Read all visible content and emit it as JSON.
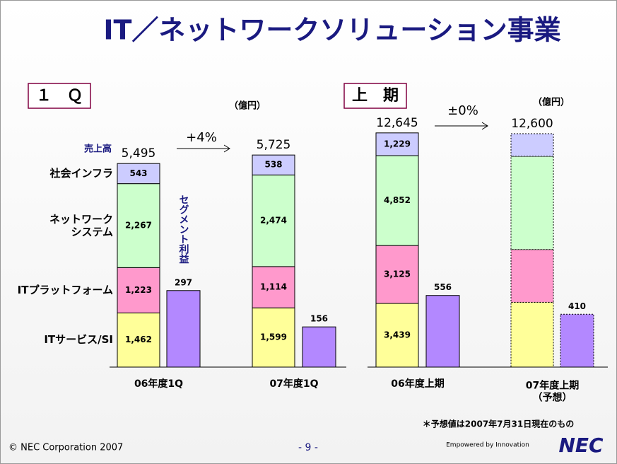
{
  "title": "IT／ネットワークソリューション事業",
  "chart_data": [
    {
      "type": "stacked_bar",
      "label": "１　Ｑ",
      "unit": "（億円）",
      "growth": "+4%",
      "categories": [
        "06年度1Q",
        "07年度1Q"
      ],
      "ylim": [
        0,
        8000
      ],
      "y2lim": [
        0,
        1150
      ],
      "dashed": [
        false,
        false
      ],
      "totals": {
        "name": "売上高",
        "values": [
          5495,
          5725
        ],
        "value_labels": [
          "5,495",
          "5,725"
        ]
      },
      "series": [
        {
          "name": "ITサービス/SI",
          "color": "#ffff99",
          "values": [
            1462,
            1599
          ],
          "value_labels": [
            "1,462",
            "1,599"
          ]
        },
        {
          "name": "ITプラットフォーム",
          "color": "#ff99cc",
          "values": [
            1223,
            1114
          ],
          "value_labels": [
            "1,223",
            "1,114"
          ]
        },
        {
          "name": "ネットワーク\nシステム",
          "color": "#ccffcc",
          "values": [
            2267,
            2474
          ],
          "value_labels": [
            "2,267",
            "2,474"
          ]
        },
        {
          "name": "社会インフラ",
          "color": "#ccccff",
          "values": [
            543,
            538
          ]
        },
        {
          "name": "セグメント利益",
          "color": "#b388ff",
          "axis": "y2",
          "values": [
            297,
            156
          ]
        }
      ]
    },
    {
      "type": "stacked_bar",
      "label": "上　期",
      "unit": "（億円）",
      "growth": "±0%",
      "categories": [
        "06年度上期",
        "07年度上期\n（予想）"
      ],
      "ylim": [
        0,
        16000
      ],
      "y2lim": [
        0,
        2300
      ],
      "dashed": [
        false,
        true
      ],
      "totals": {
        "values": [
          12645,
          12600
        ],
        "value_labels": [
          "12,645",
          "12,600"
        ]
      },
      "series": [
        {
          "color": "#ffff99",
          "values": [
            3439,
            3500
          ],
          "value_labels": [
            "3,439",
            null
          ]
        },
        {
          "color": "#ff99cc",
          "values": [
            3125,
            2850
          ],
          "value_labels": [
            "3,125",
            null
          ]
        },
        {
          "color": "#ccffcc",
          "values": [
            4852,
            5030
          ],
          "value_labels": [
            "4,852",
            null
          ]
        },
        {
          "color": "#ccccff",
          "values": [
            1229,
            1220
          ],
          "value_labels": [
            "1,229",
            null
          ]
        },
        {
          "color": "#b388ff",
          "axis": "y2",
          "values": [
            556,
            410
          ]
        }
      ]
    }
  ],
  "note": "＊予想値は2007年7月31日現在のもの",
  "footer": {
    "copyright": "© NEC Corporation 2007",
    "page": "- 9 -",
    "tagline": "Empowered by Innovation",
    "logo": "NEC"
  }
}
